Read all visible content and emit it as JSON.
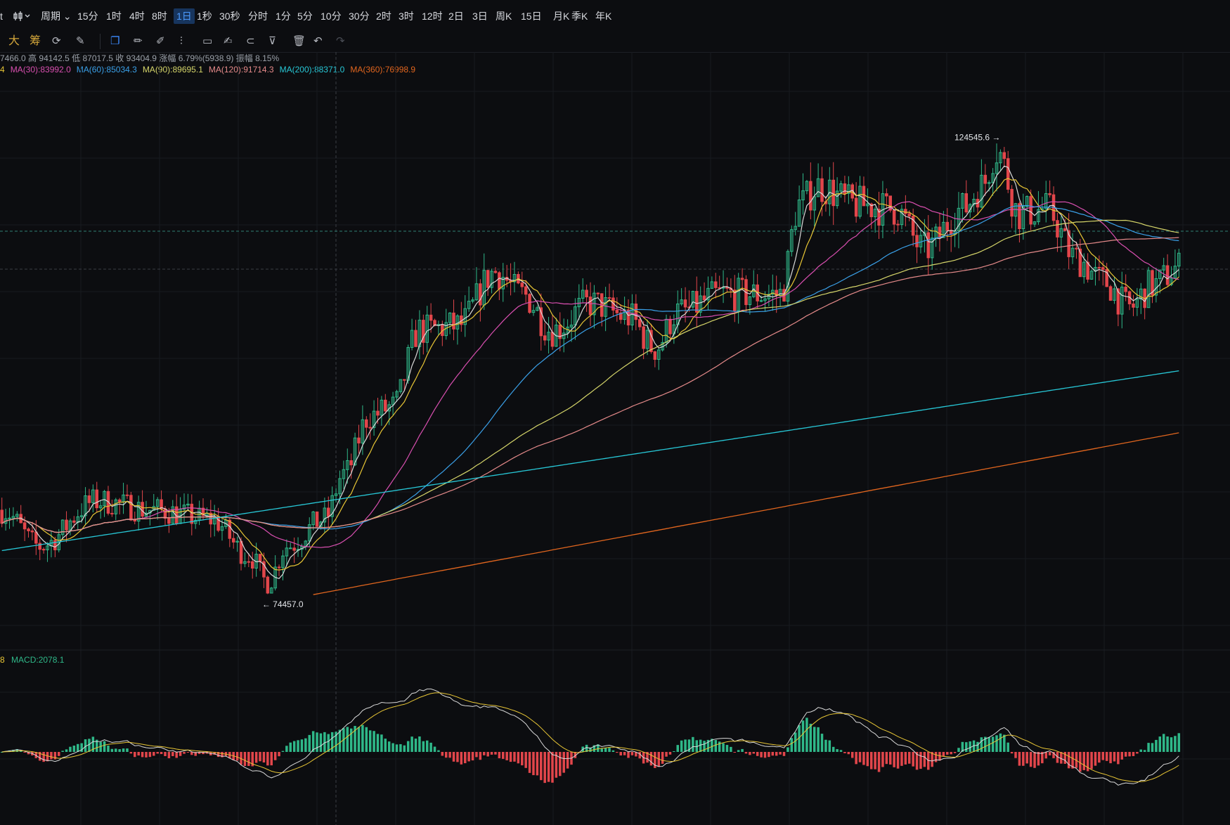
{
  "toolbar": {
    "left_fragment": "t",
    "chart_type_icon": "candlestick-icon",
    "periods": [
      {
        "label": "周期",
        "has_dropdown": true
      },
      {
        "label": "15分"
      },
      {
        "label": "1时"
      },
      {
        "label": "4时"
      },
      {
        "label": "8时"
      },
      {
        "label": "1日",
        "active": true
      },
      {
        "label": "1秒"
      },
      {
        "label": "30秒"
      },
      {
        "label": "分时"
      },
      {
        "label": "1分"
      },
      {
        "label": "5分"
      },
      {
        "label": "10分"
      },
      {
        "label": "30分"
      },
      {
        "label": "2时"
      },
      {
        "label": "3时"
      },
      {
        "label": "12时"
      },
      {
        "label": "2日"
      },
      {
        "label": "3日"
      },
      {
        "label": "周K"
      },
      {
        "label": "15日"
      },
      {
        "label": "月K"
      },
      {
        "label": "季K"
      },
      {
        "label": "年K"
      }
    ]
  },
  "drawbar": {
    "items": [
      {
        "label": "大",
        "icon": "big-text-icon"
      },
      {
        "label": "筹",
        "icon": "chip-distribution-icon"
      },
      {
        "icon": "refresh-indicator-icon"
      },
      {
        "icon": "pen-settings-icon"
      },
      {
        "icon": "copy-icon"
      },
      {
        "icon": "pencil-icon"
      },
      {
        "icon": "brush-icon"
      },
      {
        "icon": "compare-icon"
      },
      {
        "icon": "clipboard-icon"
      },
      {
        "icon": "edit-note-icon"
      },
      {
        "icon": "magnet-icon"
      },
      {
        "icon": "filter-icon"
      },
      {
        "icon": "trash-icon"
      },
      {
        "icon": "undo-icon"
      },
      {
        "icon": "redo-icon"
      }
    ]
  },
  "ohlc": {
    "open_fragment": "7466.0",
    "high_label": "高",
    "high": "94142.5",
    "low_label": "低",
    "low": "87017.5",
    "close_label": "收",
    "close": "93404.9",
    "change_label": "涨幅",
    "change": "6.79%(5938.9)",
    "amplitude_label": "振幅",
    "amplitude": "8.15%"
  },
  "ma_legend": [
    {
      "text": "4",
      "color": "#e7c535"
    },
    {
      "text": "MA(30):83992.0",
      "color": "#d94fb0"
    },
    {
      "text": "MA(60):85034.3",
      "color": "#3aa0e8"
    },
    {
      "text": "MA(90):89695.1",
      "color": "#d6d66a"
    },
    {
      "text": "MA(120):91714.3",
      "color": "#e58a8a"
    },
    {
      "text": "MA(200):88371.0",
      "color": "#27c7d6"
    },
    {
      "text": "MA(360):76998.9",
      "color": "#e0651e"
    }
  ],
  "macd_legend": {
    "prefix": "8",
    "label": "MACD:2078.1",
    "prefix_color": "#e7c535",
    "label_color": "#2fb889"
  },
  "annotations": {
    "high_marker": "124545.6 →",
    "low_marker": "← 74457.0"
  },
  "colors": {
    "up": "#2fb889",
    "down": "#e2464b",
    "background": "#0c0d10",
    "grid": "#171a1f",
    "ma5": "#d9d9d9",
    "ma10": "#e7c535",
    "ma30": "#d94fb0",
    "ma60": "#3aa0e8",
    "ma90": "#d6d66a",
    "ma120": "#e58a8a",
    "ma200": "#27c7d6",
    "ma360": "#e0651e"
  },
  "chart_data": {
    "type": "candlestick",
    "interval": "1日",
    "price_range": [
      70000,
      132000
    ],
    "price_high": 124545.6,
    "price_low": 74457.0,
    "series_keypoints": [
      {
        "i": 0,
        "v": 84000
      },
      {
        "i": 10,
        "v": 80000
      },
      {
        "i": 25,
        "v": 85000
      },
      {
        "i": 40,
        "v": 84000
      },
      {
        "i": 55,
        "v": 83000
      },
      {
        "i": 65,
        "v": 79000
      },
      {
        "i": 70,
        "v": 76000
      },
      {
        "i": 75,
        "v": 80000
      },
      {
        "i": 85,
        "v": 83000
      },
      {
        "i": 90,
        "v": 88000
      },
      {
        "i": 97,
        "v": 94500
      },
      {
        "i": 103,
        "v": 95500
      },
      {
        "i": 110,
        "v": 104000
      },
      {
        "i": 120,
        "v": 104500
      },
      {
        "i": 130,
        "v": 110500
      },
      {
        "i": 137,
        "v": 108000
      },
      {
        "i": 145,
        "v": 104000
      },
      {
        "i": 155,
        "v": 107000
      },
      {
        "i": 165,
        "v": 105500
      },
      {
        "i": 172,
        "v": 102000
      },
      {
        "i": 178,
        "v": 106000
      },
      {
        "i": 190,
        "v": 108000
      },
      {
        "i": 205,
        "v": 108000
      },
      {
        "i": 210,
        "v": 118000
      },
      {
        "i": 215,
        "v": 120000
      },
      {
        "i": 225,
        "v": 118000
      },
      {
        "i": 235,
        "v": 117500
      },
      {
        "i": 243,
        "v": 113000
      },
      {
        "i": 253,
        "v": 117500
      },
      {
        "i": 258,
        "v": 120000
      },
      {
        "i": 262,
        "v": 124000
      },
      {
        "i": 268,
        "v": 117000
      },
      {
        "i": 275,
        "v": 117500
      },
      {
        "i": 283,
        "v": 112000
      },
      {
        "i": 290,
        "v": 109500
      },
      {
        "i": 297,
        "v": 106500
      },
      {
        "i": 303,
        "v": 109000
      },
      {
        "i": 310,
        "v": 111000
      }
    ],
    "candle_count": 311,
    "macd_range": [
      -6000,
      6000
    ]
  }
}
